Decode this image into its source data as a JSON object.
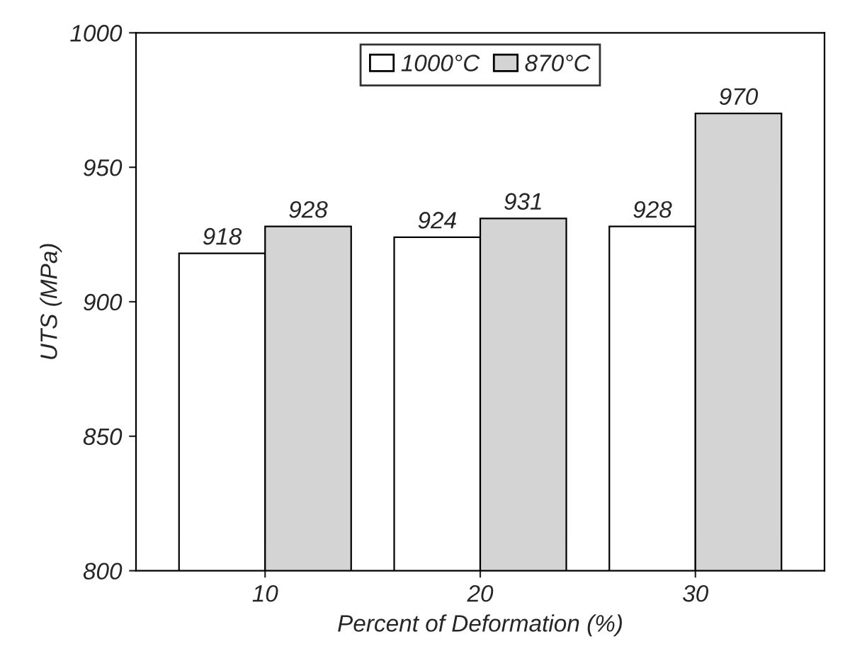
{
  "chart_data": {
    "type": "bar",
    "xlabel": "Percent of Deformation (%)",
    "ylabel": "UTS (MPa)",
    "categories": [
      "10",
      "20",
      "30"
    ],
    "series": [
      {
        "name": "1000°C",
        "color": "#ffffff",
        "values": [
          918,
          924,
          928
        ]
      },
      {
        "name": "870°C",
        "color": "#d4d4d4",
        "values": [
          928,
          931,
          970
        ]
      }
    ],
    "ylim": [
      800,
      1000
    ],
    "yticks": [
      800,
      850,
      900,
      950,
      1000
    ],
    "data_labels": true,
    "legend": "top",
    "grid": false
  }
}
